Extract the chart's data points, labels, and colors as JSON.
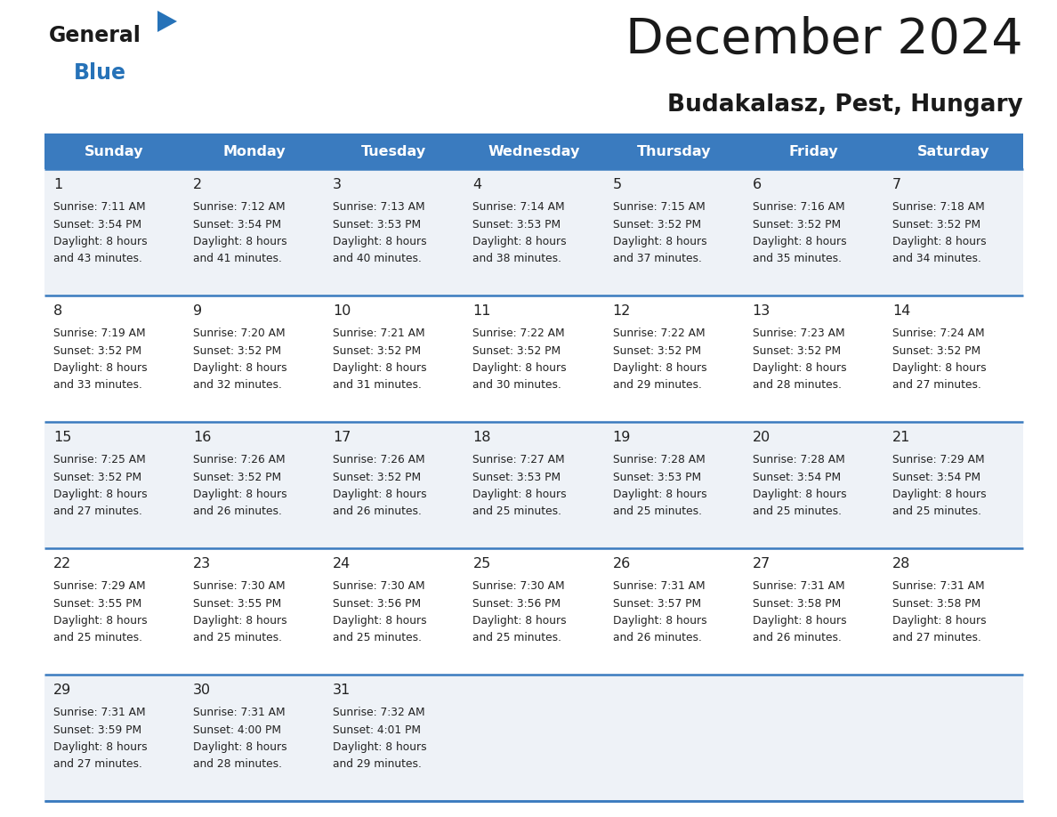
{
  "title": "December 2024",
  "subtitle": "Budakalasz, Pest, Hungary",
  "days_of_week": [
    "Sunday",
    "Monday",
    "Tuesday",
    "Wednesday",
    "Thursday",
    "Friday",
    "Saturday"
  ],
  "header_bg": "#3a7bbf",
  "header_text": "#ffffff",
  "row_bg_odd": "#eef2f7",
  "row_bg_even": "#ffffff",
  "border_color": "#3a7bbf",
  "text_color": "#222222",
  "logo_black": "#1a1a1a",
  "logo_blue": "#2672b8",
  "title_color": "#1a1a1a",
  "calendar_data": [
    [
      {
        "day": 1,
        "sunrise": "7:11 AM",
        "sunset": "3:54 PM",
        "daylight_mins": 43
      },
      {
        "day": 2,
        "sunrise": "7:12 AM",
        "sunset": "3:54 PM",
        "daylight_mins": 41
      },
      {
        "day": 3,
        "sunrise": "7:13 AM",
        "sunset": "3:53 PM",
        "daylight_mins": 40
      },
      {
        "day": 4,
        "sunrise": "7:14 AM",
        "sunset": "3:53 PM",
        "daylight_mins": 38
      },
      {
        "day": 5,
        "sunrise": "7:15 AM",
        "sunset": "3:52 PM",
        "daylight_mins": 37
      },
      {
        "day": 6,
        "sunrise": "7:16 AM",
        "sunset": "3:52 PM",
        "daylight_mins": 35
      },
      {
        "day": 7,
        "sunrise": "7:18 AM",
        "sunset": "3:52 PM",
        "daylight_mins": 34
      }
    ],
    [
      {
        "day": 8,
        "sunrise": "7:19 AM",
        "sunset": "3:52 PM",
        "daylight_mins": 33
      },
      {
        "day": 9,
        "sunrise": "7:20 AM",
        "sunset": "3:52 PM",
        "daylight_mins": 32
      },
      {
        "day": 10,
        "sunrise": "7:21 AM",
        "sunset": "3:52 PM",
        "daylight_mins": 31
      },
      {
        "day": 11,
        "sunrise": "7:22 AM",
        "sunset": "3:52 PM",
        "daylight_mins": 30
      },
      {
        "day": 12,
        "sunrise": "7:22 AM",
        "sunset": "3:52 PM",
        "daylight_mins": 29
      },
      {
        "day": 13,
        "sunrise": "7:23 AM",
        "sunset": "3:52 PM",
        "daylight_mins": 28
      },
      {
        "day": 14,
        "sunrise": "7:24 AM",
        "sunset": "3:52 PM",
        "daylight_mins": 27
      }
    ],
    [
      {
        "day": 15,
        "sunrise": "7:25 AM",
        "sunset": "3:52 PM",
        "daylight_mins": 27
      },
      {
        "day": 16,
        "sunrise": "7:26 AM",
        "sunset": "3:52 PM",
        "daylight_mins": 26
      },
      {
        "day": 17,
        "sunrise": "7:26 AM",
        "sunset": "3:52 PM",
        "daylight_mins": 26
      },
      {
        "day": 18,
        "sunrise": "7:27 AM",
        "sunset": "3:53 PM",
        "daylight_mins": 25
      },
      {
        "day": 19,
        "sunrise": "7:28 AM",
        "sunset": "3:53 PM",
        "daylight_mins": 25
      },
      {
        "day": 20,
        "sunrise": "7:28 AM",
        "sunset": "3:54 PM",
        "daylight_mins": 25
      },
      {
        "day": 21,
        "sunrise": "7:29 AM",
        "sunset": "3:54 PM",
        "daylight_mins": 25
      }
    ],
    [
      {
        "day": 22,
        "sunrise": "7:29 AM",
        "sunset": "3:55 PM",
        "daylight_mins": 25
      },
      {
        "day": 23,
        "sunrise": "7:30 AM",
        "sunset": "3:55 PM",
        "daylight_mins": 25
      },
      {
        "day": 24,
        "sunrise": "7:30 AM",
        "sunset": "3:56 PM",
        "daylight_mins": 25
      },
      {
        "day": 25,
        "sunrise": "7:30 AM",
        "sunset": "3:56 PM",
        "daylight_mins": 25
      },
      {
        "day": 26,
        "sunrise": "7:31 AM",
        "sunset": "3:57 PM",
        "daylight_mins": 26
      },
      {
        "day": 27,
        "sunrise": "7:31 AM",
        "sunset": "3:58 PM",
        "daylight_mins": 26
      },
      {
        "day": 28,
        "sunrise": "7:31 AM",
        "sunset": "3:58 PM",
        "daylight_mins": 27
      }
    ],
    [
      {
        "day": 29,
        "sunrise": "7:31 AM",
        "sunset": "3:59 PM",
        "daylight_mins": 27
      },
      {
        "day": 30,
        "sunrise": "7:31 AM",
        "sunset": "4:00 PM",
        "daylight_mins": 28
      },
      {
        "day": 31,
        "sunrise": "7:32 AM",
        "sunset": "4:01 PM",
        "daylight_mins": 29
      },
      null,
      null,
      null,
      null
    ]
  ],
  "figwidth": 11.88,
  "figheight": 9.18,
  "dpi": 100
}
